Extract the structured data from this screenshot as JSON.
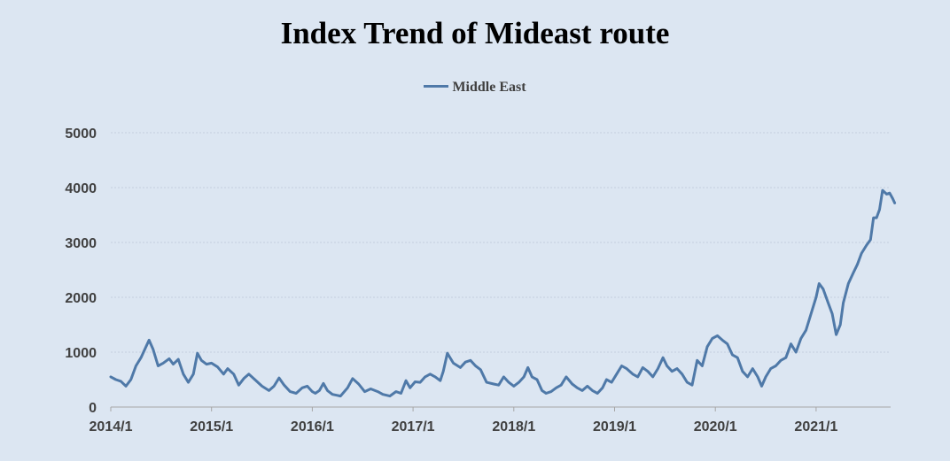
{
  "chart_data": {
    "type": "line",
    "title": "Index Trend of Mideast route",
    "xlabel": "",
    "ylabel": "",
    "ylim": [
      0,
      5000
    ],
    "yticks": [
      0,
      1000,
      2000,
      3000,
      4000,
      5000
    ],
    "xticks": [
      "2014/1",
      "2015/1",
      "2016/1",
      "2017/1",
      "2018/1",
      "2019/1",
      "2020/1",
      "2021/1"
    ],
    "grid": true,
    "legend_position": "top-center",
    "color": "#4f79a8",
    "series": [
      {
        "name": "Middle East",
        "points": [
          [
            2014.0,
            550
          ],
          [
            2014.05,
            500
          ],
          [
            2014.1,
            470
          ],
          [
            2014.15,
            380
          ],
          [
            2014.2,
            500
          ],
          [
            2014.25,
            750
          ],
          [
            2014.3,
            900
          ],
          [
            2014.35,
            1100
          ],
          [
            2014.38,
            1220
          ],
          [
            2014.42,
            1050
          ],
          [
            2014.47,
            750
          ],
          [
            2014.52,
            800
          ],
          [
            2014.58,
            880
          ],
          [
            2014.62,
            780
          ],
          [
            2014.67,
            870
          ],
          [
            2014.72,
            600
          ],
          [
            2014.77,
            450
          ],
          [
            2014.82,
            600
          ],
          [
            2014.86,
            980
          ],
          [
            2014.9,
            850
          ],
          [
            2014.95,
            780
          ],
          [
            2015.0,
            800
          ],
          [
            2015.06,
            730
          ],
          [
            2015.12,
            600
          ],
          [
            2015.16,
            700
          ],
          [
            2015.22,
            600
          ],
          [
            2015.27,
            400
          ],
          [
            2015.32,
            520
          ],
          [
            2015.37,
            600
          ],
          [
            2015.43,
            500
          ],
          [
            2015.5,
            380
          ],
          [
            2015.57,
            300
          ],
          [
            2015.62,
            380
          ],
          [
            2015.67,
            530
          ],
          [
            2015.72,
            400
          ],
          [
            2015.78,
            280
          ],
          [
            2015.84,
            250
          ],
          [
            2015.9,
            350
          ],
          [
            2015.95,
            380
          ],
          [
            2016.0,
            280
          ],
          [
            2016.03,
            250
          ],
          [
            2016.07,
            300
          ],
          [
            2016.11,
            430
          ],
          [
            2016.15,
            300
          ],
          [
            2016.2,
            230
          ],
          [
            2016.28,
            200
          ],
          [
            2016.35,
            350
          ],
          [
            2016.4,
            520
          ],
          [
            2016.46,
            420
          ],
          [
            2016.52,
            280
          ],
          [
            2016.58,
            330
          ],
          [
            2016.65,
            280
          ],
          [
            2016.7,
            230
          ],
          [
            2016.77,
            200
          ],
          [
            2016.83,
            280
          ],
          [
            2016.88,
            250
          ],
          [
            2016.93,
            480
          ],
          [
            2016.97,
            350
          ],
          [
            2017.02,
            460
          ],
          [
            2017.07,
            450
          ],
          [
            2017.12,
            550
          ],
          [
            2017.17,
            600
          ],
          [
            2017.22,
            550
          ],
          [
            2017.27,
            480
          ],
          [
            2017.3,
            650
          ],
          [
            2017.34,
            980
          ],
          [
            2017.4,
            800
          ],
          [
            2017.47,
            720
          ],
          [
            2017.52,
            820
          ],
          [
            2017.57,
            850
          ],
          [
            2017.62,
            750
          ],
          [
            2017.67,
            680
          ],
          [
            2017.73,
            450
          ],
          [
            2017.8,
            420
          ],
          [
            2017.85,
            400
          ],
          [
            2017.9,
            550
          ],
          [
            2017.95,
            450
          ],
          [
            2018.0,
            380
          ],
          [
            2018.05,
            450
          ],
          [
            2018.1,
            550
          ],
          [
            2018.14,
            720
          ],
          [
            2018.18,
            550
          ],
          [
            2018.23,
            500
          ],
          [
            2018.28,
            300
          ],
          [
            2018.32,
            250
          ],
          [
            2018.37,
            280
          ],
          [
            2018.42,
            350
          ],
          [
            2018.47,
            400
          ],
          [
            2018.52,
            550
          ],
          [
            2018.58,
            420
          ],
          [
            2018.63,
            350
          ],
          [
            2018.68,
            300
          ],
          [
            2018.73,
            380
          ],
          [
            2018.78,
            300
          ],
          [
            2018.83,
            250
          ],
          [
            2018.88,
            350
          ],
          [
            2018.92,
            500
          ],
          [
            2018.97,
            450
          ],
          [
            2019.02,
            600
          ],
          [
            2019.07,
            750
          ],
          [
            2019.12,
            700
          ],
          [
            2019.18,
            600
          ],
          [
            2019.23,
            550
          ],
          [
            2019.28,
            720
          ],
          [
            2019.33,
            650
          ],
          [
            2019.38,
            550
          ],
          [
            2019.43,
            700
          ],
          [
            2019.48,
            900
          ],
          [
            2019.52,
            750
          ],
          [
            2019.57,
            650
          ],
          [
            2019.62,
            700
          ],
          [
            2019.67,
            600
          ],
          [
            2019.72,
            450
          ],
          [
            2019.77,
            400
          ],
          [
            2019.82,
            850
          ],
          [
            2019.87,
            750
          ],
          [
            2019.92,
            1100
          ],
          [
            2019.97,
            1250
          ],
          [
            2020.02,
            1300
          ],
          [
            2020.07,
            1220
          ],
          [
            2020.12,
            1150
          ],
          [
            2020.17,
            950
          ],
          [
            2020.22,
            900
          ],
          [
            2020.27,
            650
          ],
          [
            2020.32,
            550
          ],
          [
            2020.37,
            700
          ],
          [
            2020.42,
            550
          ],
          [
            2020.46,
            380
          ],
          [
            2020.5,
            550
          ],
          [
            2020.55,
            700
          ],
          [
            2020.6,
            750
          ],
          [
            2020.65,
            850
          ],
          [
            2020.7,
            900
          ],
          [
            2020.75,
            1150
          ],
          [
            2020.8,
            1000
          ],
          [
            2020.85,
            1250
          ],
          [
            2020.9,
            1400
          ],
          [
            2020.95,
            1700
          ],
          [
            2021.0,
            2000
          ],
          [
            2021.03,
            2250
          ],
          [
            2021.07,
            2150
          ],
          [
            2021.12,
            1900
          ],
          [
            2021.16,
            1700
          ],
          [
            2021.2,
            1320
          ],
          [
            2021.24,
            1500
          ],
          [
            2021.27,
            1900
          ],
          [
            2021.32,
            2250
          ],
          [
            2021.37,
            2450
          ],
          [
            2021.41,
            2600
          ],
          [
            2021.45,
            2800
          ],
          [
            2021.5,
            2950
          ],
          [
            2021.54,
            3050
          ],
          [
            2021.57,
            3450
          ],
          [
            2021.6,
            3450
          ],
          [
            2021.63,
            3600
          ],
          [
            2021.66,
            3950
          ],
          [
            2021.7,
            3880
          ],
          [
            2021.73,
            3900
          ],
          [
            2021.76,
            3800
          ],
          [
            2021.78,
            3720
          ]
        ]
      }
    ]
  }
}
